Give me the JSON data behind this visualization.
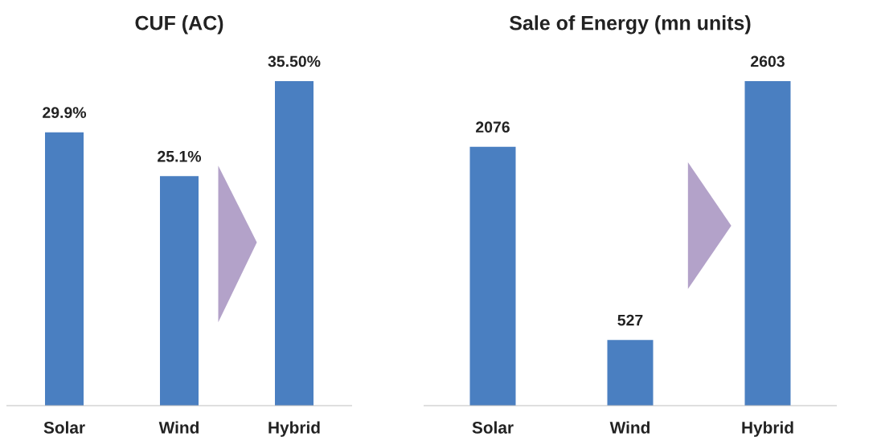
{
  "chart_data": [
    {
      "type": "bar",
      "title": "CUF (AC)",
      "categories": [
        "Solar",
        "Wind",
        "Hybrid"
      ],
      "values": [
        29.9,
        25.1,
        35.5
      ],
      "value_labels": [
        "29.9%",
        "25.1%",
        "35.50%"
      ],
      "color": "#4a7fc1"
    },
    {
      "type": "bar",
      "title": "Sale of Energy (mn units)",
      "categories": [
        "Solar",
        "Wind",
        "Hybrid"
      ],
      "values": [
        2076,
        527,
        2603
      ],
      "data_labels": true,
      "color": "#4a7fc1"
    }
  ]
}
